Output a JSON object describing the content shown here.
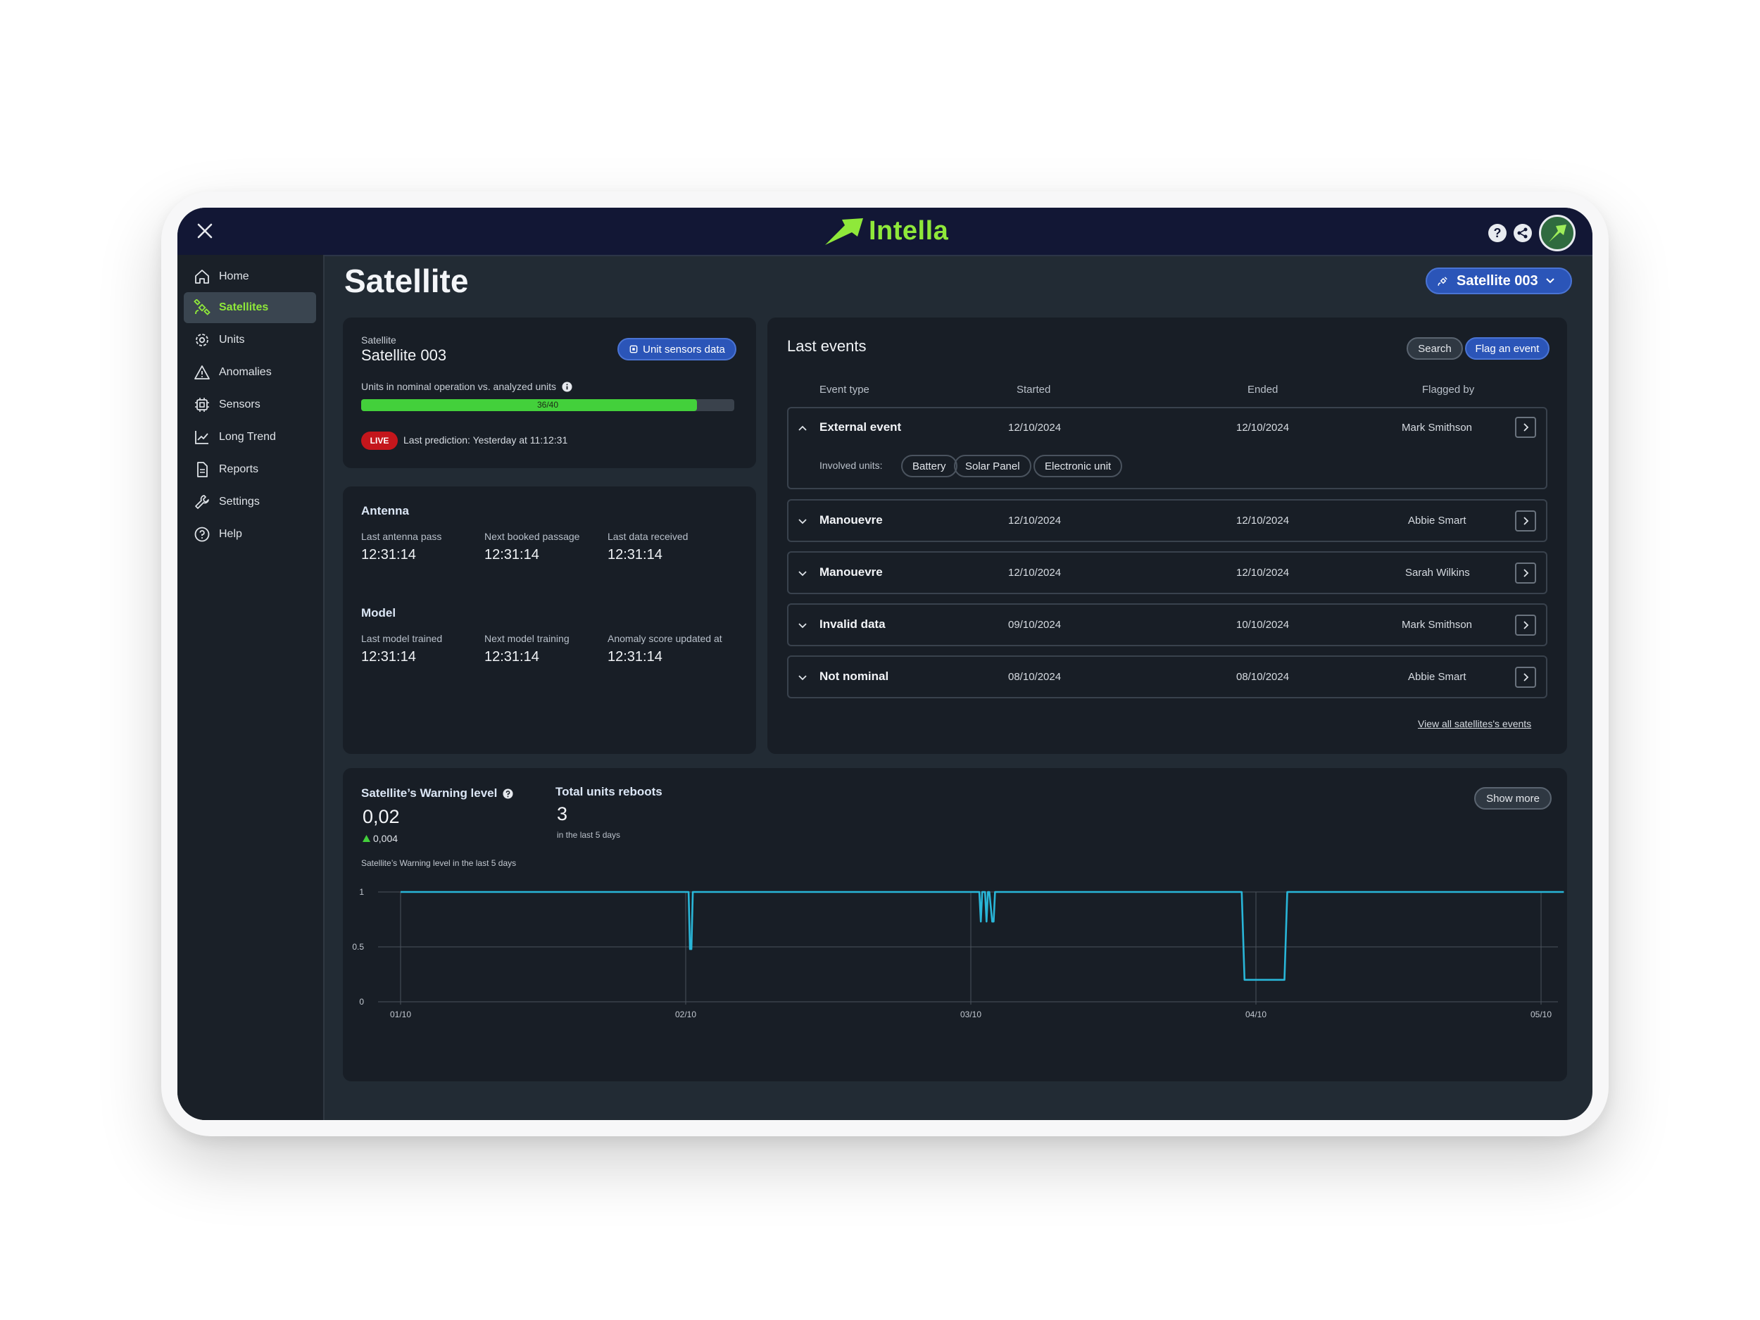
{
  "app": {
    "name": "Intella"
  },
  "nav": {
    "items": [
      {
        "label": "Home",
        "icon": "home-icon"
      },
      {
        "label": "Satellites",
        "icon": "satellite-icon",
        "active": true
      },
      {
        "label": "Units",
        "icon": "gear-icon"
      },
      {
        "label": "Anomalies",
        "icon": "warning-icon"
      },
      {
        "label": "Sensors",
        "icon": "chip-icon"
      },
      {
        "label": "Long Trend",
        "icon": "line-chart-icon"
      },
      {
        "label": "Reports",
        "icon": "document-icon"
      },
      {
        "label": "Settings",
        "icon": "wrench-icon"
      },
      {
        "label": "Help",
        "icon": "help-icon"
      }
    ]
  },
  "header": {
    "title": "Satellite",
    "selector": "Satellite 003"
  },
  "satellite_card": {
    "caption": "Satellite",
    "name": "Satellite 003",
    "sensors_button": "Unit sensors data",
    "units_label": "Units in nominal operation vs. analyzed units",
    "progress_text": "36/40",
    "progress": 0.9,
    "live": "LIVE",
    "prediction_label": "Last prediction:",
    "prediction_value": "Yesterday at 11:12:31"
  },
  "antenna": {
    "title": "Antenna",
    "fields": [
      {
        "label": "Last antenna pass",
        "value": "12:31:14"
      },
      {
        "label": "Next booked passage",
        "value": "12:31:14"
      },
      {
        "label": "Last data received",
        "value": "12:31:14"
      }
    ]
  },
  "model": {
    "title": "Model",
    "fields": [
      {
        "label": "Last model trained",
        "value": "12:31:14"
      },
      {
        "label": "Next model training",
        "value": "12:31:14"
      },
      {
        "label": "Anomaly score updated at",
        "value": "12:31:14"
      }
    ]
  },
  "events": {
    "title": "Last events",
    "search": "Search",
    "flag": "Flag an event",
    "columns": [
      "Event type",
      "Started",
      "Ended",
      "Flagged by"
    ],
    "involved_label": "Involved units:",
    "involved_units": [
      "Battery",
      "Solar Panel",
      "Electronic unit"
    ],
    "rows": [
      {
        "type": "External event",
        "started": "12/10/2024",
        "ended": "12/10/2024",
        "by": "Mark Smithson",
        "expanded": true
      },
      {
        "type": "Manouevre",
        "started": "12/10/2024",
        "ended": "12/10/2024",
        "by": "Abbie Smart"
      },
      {
        "type": "Manouevre",
        "started": "12/10/2024",
        "ended": "12/10/2024",
        "by": "Sarah Wilkins"
      },
      {
        "type": "Invalid data",
        "started": "09/10/2024",
        "ended": "10/10/2024",
        "by": "Mark Smithson"
      },
      {
        "type": "Not nominal",
        "started": "08/10/2024",
        "ended": "08/10/2024",
        "by": "Abbie Smart"
      }
    ],
    "view_all": "View all satellites's events"
  },
  "warning": {
    "title": "Satellite’s Warning level",
    "value": "0,02",
    "delta": "0,004",
    "reboots_title": "Total units reboots",
    "reboots_value": "3",
    "reboots_caption": "in the last 5 days",
    "show_more": "Show more",
    "chart_caption": "Satellite’s Warning level in the last 5 days"
  },
  "chart_data": {
    "type": "line",
    "xlim": [
      0,
      4.08
    ],
    "ylim": [
      0,
      1
    ],
    "xticks": [
      0,
      1,
      2,
      3,
      4
    ],
    "xtick_labels": [
      "01/10",
      "02/10",
      "03/10",
      "04/10",
      "05/10"
    ],
    "yticks": [
      0,
      0.5,
      1
    ],
    "ytick_labels": [
      "0",
      "0.5",
      "1"
    ],
    "grid": true,
    "series": [
      {
        "color": "#29b6d8",
        "x": [
          0,
          1.0,
          1.01,
          1.015,
          1.02,
          1.025,
          1.035,
          2.0,
          2.03,
          2.035,
          2.04,
          2.05,
          2.055,
          2.06,
          2.065,
          2.075,
          2.08,
          2.085,
          2.09,
          2.95,
          2.96,
          3.1,
          3.11,
          4.08
        ],
        "y": [
          1,
          1,
          1,
          0.48,
          0.48,
          1,
          1,
          1,
          1,
          0.73,
          1,
          1,
          0.73,
          1,
          1,
          0.73,
          0.73,
          1,
          1,
          1,
          0.2,
          0.2,
          1,
          1
        ]
      }
    ]
  }
}
